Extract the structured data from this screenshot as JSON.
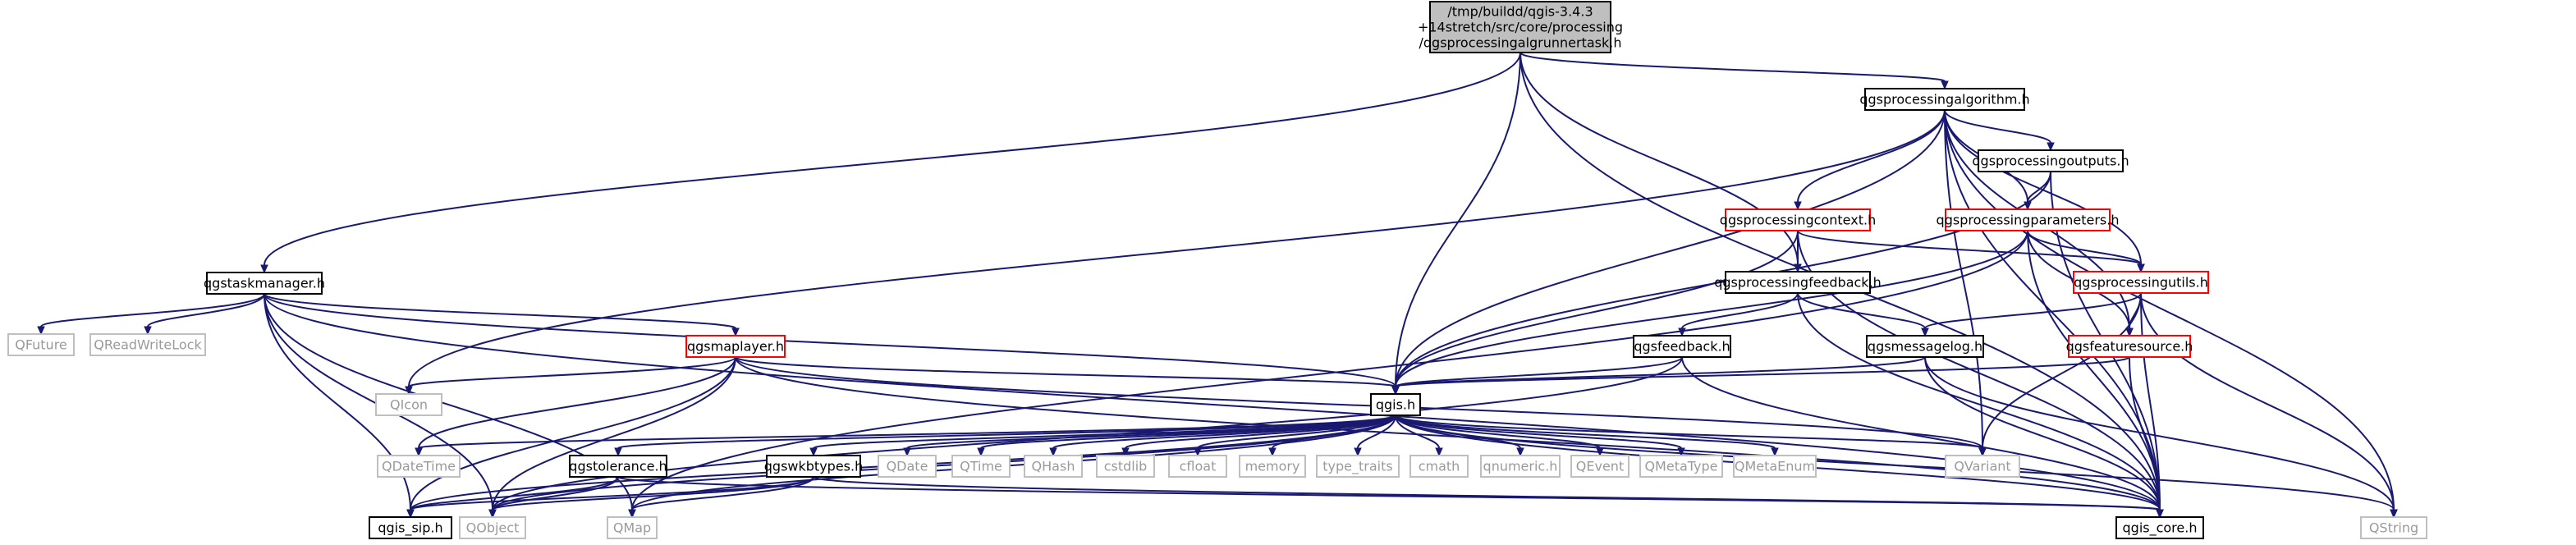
{
  "diagram": {
    "colors": {
      "edge": "#191970",
      "documented_border": "#000000",
      "truncated_border": "#ff0000",
      "external_border": "#bfbfbf",
      "external_text": "#9a9a9a",
      "root_fill": "#bfbfbf",
      "default_fill": "#ffffff",
      "text": "#000000"
    },
    "nodes": [
      {
        "id": "root",
        "lines": [
          "/tmp/buildd/qgis-3.4.3",
          "+14stretch/src/core/processing",
          "/qgsprocessingalgrunnertask.h"
        ],
        "kind": "root"
      },
      {
        "id": "alg",
        "lines": [
          "qgsprocessingalgorithm.h"
        ],
        "kind": "documented"
      },
      {
        "id": "outputs",
        "lines": [
          "qgsprocessingoutputs.h"
        ],
        "kind": "documented"
      },
      {
        "id": "context",
        "lines": [
          "qgsprocessingcontext.h"
        ],
        "kind": "truncated"
      },
      {
        "id": "params",
        "lines": [
          "qgsprocessingparameters.h"
        ],
        "kind": "truncated"
      },
      {
        "id": "utils",
        "lines": [
          "qgsprocessingutils.h"
        ],
        "kind": "truncated"
      },
      {
        "id": "feedback_p",
        "lines": [
          "qgsprocessingfeedback.h"
        ],
        "kind": "documented"
      },
      {
        "id": "taskmgr",
        "lines": [
          "qgstaskmanager.h"
        ],
        "kind": "documented"
      },
      {
        "id": "qfuture",
        "lines": [
          "QFuture"
        ],
        "kind": "external"
      },
      {
        "id": "qrwlock",
        "lines": [
          "QReadWriteLock"
        ],
        "kind": "external"
      },
      {
        "id": "maplayer",
        "lines": [
          "qgsmaplayer.h"
        ],
        "kind": "truncated"
      },
      {
        "id": "qicon",
        "lines": [
          "QIcon"
        ],
        "kind": "external"
      },
      {
        "id": "qgsfeedback",
        "lines": [
          "qgsfeedback.h"
        ],
        "kind": "documented"
      },
      {
        "id": "msglog",
        "lines": [
          "qgsmessagelog.h"
        ],
        "kind": "documented"
      },
      {
        "id": "featsrc",
        "lines": [
          "qgsfeaturesource.h"
        ],
        "kind": "truncated"
      },
      {
        "id": "qgis",
        "lines": [
          "qgis.h"
        ],
        "kind": "documented"
      },
      {
        "id": "qdatetime",
        "lines": [
          "QDateTime"
        ],
        "kind": "external"
      },
      {
        "id": "tolerance",
        "lines": [
          "qgstolerance.h"
        ],
        "kind": "documented"
      },
      {
        "id": "qdate",
        "lines": [
          "QDate"
        ],
        "kind": "external"
      },
      {
        "id": "qtime",
        "lines": [
          "QTime"
        ],
        "kind": "external"
      },
      {
        "id": "qhash",
        "lines": [
          "QHash"
        ],
        "kind": "external"
      },
      {
        "id": "cstdlib",
        "lines": [
          "cstdlib"
        ],
        "kind": "external"
      },
      {
        "id": "cfloat",
        "lines": [
          "cfloat"
        ],
        "kind": "external"
      },
      {
        "id": "memory",
        "lines": [
          "memory"
        ],
        "kind": "external"
      },
      {
        "id": "typetraits",
        "lines": [
          "type_traits"
        ],
        "kind": "external"
      },
      {
        "id": "cmath",
        "lines": [
          "cmath"
        ],
        "kind": "external"
      },
      {
        "id": "qnumeric",
        "lines": [
          "qnumeric.h"
        ],
        "kind": "external"
      },
      {
        "id": "qevent",
        "lines": [
          "QEvent"
        ],
        "kind": "external"
      },
      {
        "id": "qmetatype",
        "lines": [
          "QMetaType"
        ],
        "kind": "external"
      },
      {
        "id": "qmetaenum",
        "lines": [
          "QMetaEnum"
        ],
        "kind": "external"
      },
      {
        "id": "wkbtypes",
        "lines": [
          "qgswkbtypes.h"
        ],
        "kind": "documented"
      },
      {
        "id": "qvariant",
        "lines": [
          "QVariant"
        ],
        "kind": "external"
      },
      {
        "id": "qgissip",
        "lines": [
          "qgis_sip.h"
        ],
        "kind": "documented"
      },
      {
        "id": "qobject",
        "lines": [
          "QObject"
        ],
        "kind": "external"
      },
      {
        "id": "qmap",
        "lines": [
          "QMap"
        ],
        "kind": "external"
      },
      {
        "id": "qgiscore",
        "lines": [
          "qgis_core.h"
        ],
        "kind": "documented"
      },
      {
        "id": "qstring",
        "lines": [
          "QString"
        ],
        "kind": "external"
      }
    ],
    "edges": [
      [
        "root",
        "alg"
      ],
      [
        "root",
        "feedback_p"
      ],
      [
        "root",
        "taskmgr"
      ],
      [
        "root",
        "qgis"
      ],
      [
        "root",
        "qgiscore"
      ],
      [
        "alg",
        "outputs"
      ],
      [
        "alg",
        "context"
      ],
      [
        "alg",
        "params"
      ],
      [
        "alg",
        "utils"
      ],
      [
        "alg",
        "featsrc"
      ],
      [
        "alg",
        "qgis"
      ],
      [
        "alg",
        "qvariant"
      ],
      [
        "alg",
        "qicon"
      ],
      [
        "alg",
        "qgiscore"
      ],
      [
        "alg",
        "qstring"
      ],
      [
        "outputs",
        "params"
      ],
      [
        "outputs",
        "qgiscore"
      ],
      [
        "outputs",
        "qgis"
      ],
      [
        "context",
        "feedback_p"
      ],
      [
        "context",
        "utils"
      ],
      [
        "context",
        "qgis"
      ],
      [
        "context",
        "qgiscore"
      ],
      [
        "params",
        "utils"
      ],
      [
        "params",
        "featsrc"
      ],
      [
        "params",
        "qgis"
      ],
      [
        "params",
        "qgiscore"
      ],
      [
        "params",
        "qmap"
      ],
      [
        "utils",
        "msglog"
      ],
      [
        "utils",
        "featsrc"
      ],
      [
        "utils",
        "qvariant"
      ],
      [
        "utils",
        "qgiscore"
      ],
      [
        "utils",
        "qstring"
      ],
      [
        "feedback_p",
        "qgsfeedback"
      ],
      [
        "feedback_p",
        "msglog"
      ],
      [
        "feedback_p",
        "qgiscore"
      ],
      [
        "taskmgr",
        "qfuture"
      ],
      [
        "taskmgr",
        "qrwlock"
      ],
      [
        "taskmgr",
        "maplayer"
      ],
      [
        "taskmgr",
        "qgis"
      ],
      [
        "taskmgr",
        "qgissip"
      ],
      [
        "taskmgr",
        "qobject"
      ],
      [
        "taskmgr",
        "qmap"
      ],
      [
        "taskmgr",
        "qgiscore"
      ],
      [
        "maplayer",
        "qicon"
      ],
      [
        "maplayer",
        "qgis"
      ],
      [
        "maplayer",
        "qdatetime"
      ],
      [
        "maplayer",
        "qobject"
      ],
      [
        "maplayer",
        "qgiscore"
      ],
      [
        "maplayer",
        "qgissip"
      ],
      [
        "maplayer",
        "qvariant"
      ],
      [
        "qgsfeedback",
        "qgis"
      ],
      [
        "qgsfeedback",
        "qobject"
      ],
      [
        "qgsfeedback",
        "qgiscore"
      ],
      [
        "msglog",
        "qgis"
      ],
      [
        "msglog",
        "qgiscore"
      ],
      [
        "msglog",
        "qstring"
      ],
      [
        "featsrc",
        "qgis"
      ],
      [
        "featsrc",
        "qgiscore"
      ],
      [
        "qgis",
        "qdatetime"
      ],
      [
        "qgis",
        "tolerance"
      ],
      [
        "qgis",
        "qdate"
      ],
      [
        "qgis",
        "qtime"
      ],
      [
        "qgis",
        "qhash"
      ],
      [
        "qgis",
        "cstdlib"
      ],
      [
        "qgis",
        "cfloat"
      ],
      [
        "qgis",
        "memory"
      ],
      [
        "qgis",
        "typetraits"
      ],
      [
        "qgis",
        "cmath"
      ],
      [
        "qgis",
        "qnumeric"
      ],
      [
        "qgis",
        "qevent"
      ],
      [
        "qgis",
        "qmetatype"
      ],
      [
        "qgis",
        "qmetaenum"
      ],
      [
        "qgis",
        "wkbtypes"
      ],
      [
        "qgis",
        "qvariant"
      ],
      [
        "qgis",
        "qgissip"
      ],
      [
        "qgis",
        "qobject"
      ],
      [
        "qgis",
        "qmap"
      ],
      [
        "qgis",
        "qgiscore"
      ],
      [
        "qgis",
        "qstring"
      ],
      [
        "tolerance",
        "qgissip"
      ],
      [
        "tolerance",
        "qobject"
      ],
      [
        "tolerance",
        "qgiscore"
      ],
      [
        "wkbtypes",
        "qobject"
      ],
      [
        "wkbtypes",
        "qmap"
      ],
      [
        "wkbtypes",
        "qgiscore"
      ],
      [
        "wkbtypes",
        "qgissip"
      ]
    ]
  }
}
